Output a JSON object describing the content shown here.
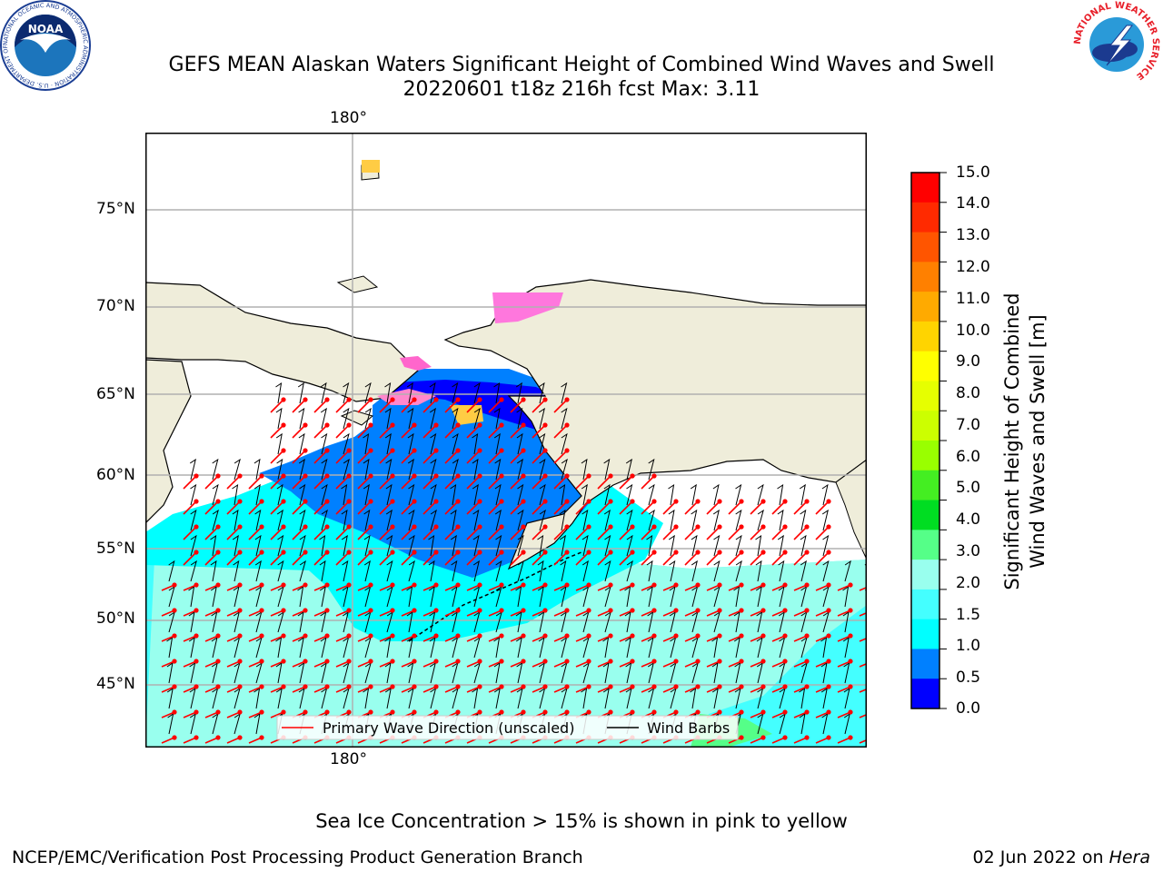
{
  "header": {
    "title_line1": "GEFS MEAN Alaskan Waters Significant Height of Combined Wind Waves and Swell",
    "title_line2": "20220601 t18z 216h fcst   Max: 3.11"
  },
  "logos": {
    "left": {
      "name": "NOAA",
      "ring_text": "NATIONAL OCEANIC AND ATMOSPHERIC ADMINISTRATION · U.S. DEPARTMENT OF COMMERCE"
    },
    "right": {
      "ring_text": "NATIONAL WEATHER SERVICE"
    }
  },
  "map": {
    "lon_label_top": "180°",
    "lon_label_bottom": "180°",
    "lat_labels": [
      "75°N",
      "70°N",
      "65°N",
      "60°N",
      "55°N",
      "50°N",
      "45°N"
    ],
    "legend": {
      "wave_direction": "Primary Wave Direction (unscaled)",
      "wind_barbs": "Wind Barbs"
    },
    "colors": {
      "land": "#efedda",
      "wave_arrow": "#ff0000",
      "barb": "#000000",
      "grid": "#b0b0b0"
    }
  },
  "colorbar": {
    "label_line1": "Significant Height of Combined",
    "label_line2": "Wind Waves and Swell [m]",
    "ticks": [
      "15.0",
      "14.0",
      "13.0",
      "12.0",
      "11.0",
      "10.0",
      "9.0",
      "8.0",
      "7.0",
      "6.0",
      "5.0",
      "4.0",
      "3.0",
      "2.0",
      "1.5",
      "1.0",
      "0.5",
      "0.0"
    ],
    "colors_top_to_bottom": [
      "#ff0000",
      "#ff2a00",
      "#ff5500",
      "#ff8000",
      "#ffaa00",
      "#ffd400",
      "#ffff00",
      "#e6ff00",
      "#ccff00",
      "#99ff00",
      "#44ee22",
      "#00dd22",
      "#55ff88",
      "#99ffee",
      "#44ffff",
      "#00ffff",
      "#0080ff",
      "#0000ff"
    ]
  },
  "footer": {
    "note": "Sea Ice Concentration > 15% is shown in pink to yellow",
    "org": "NCEP/EMC/Verification Post Processing Product Generation Branch",
    "date": "02 Jun 2022 on ",
    "host": "Hera"
  }
}
